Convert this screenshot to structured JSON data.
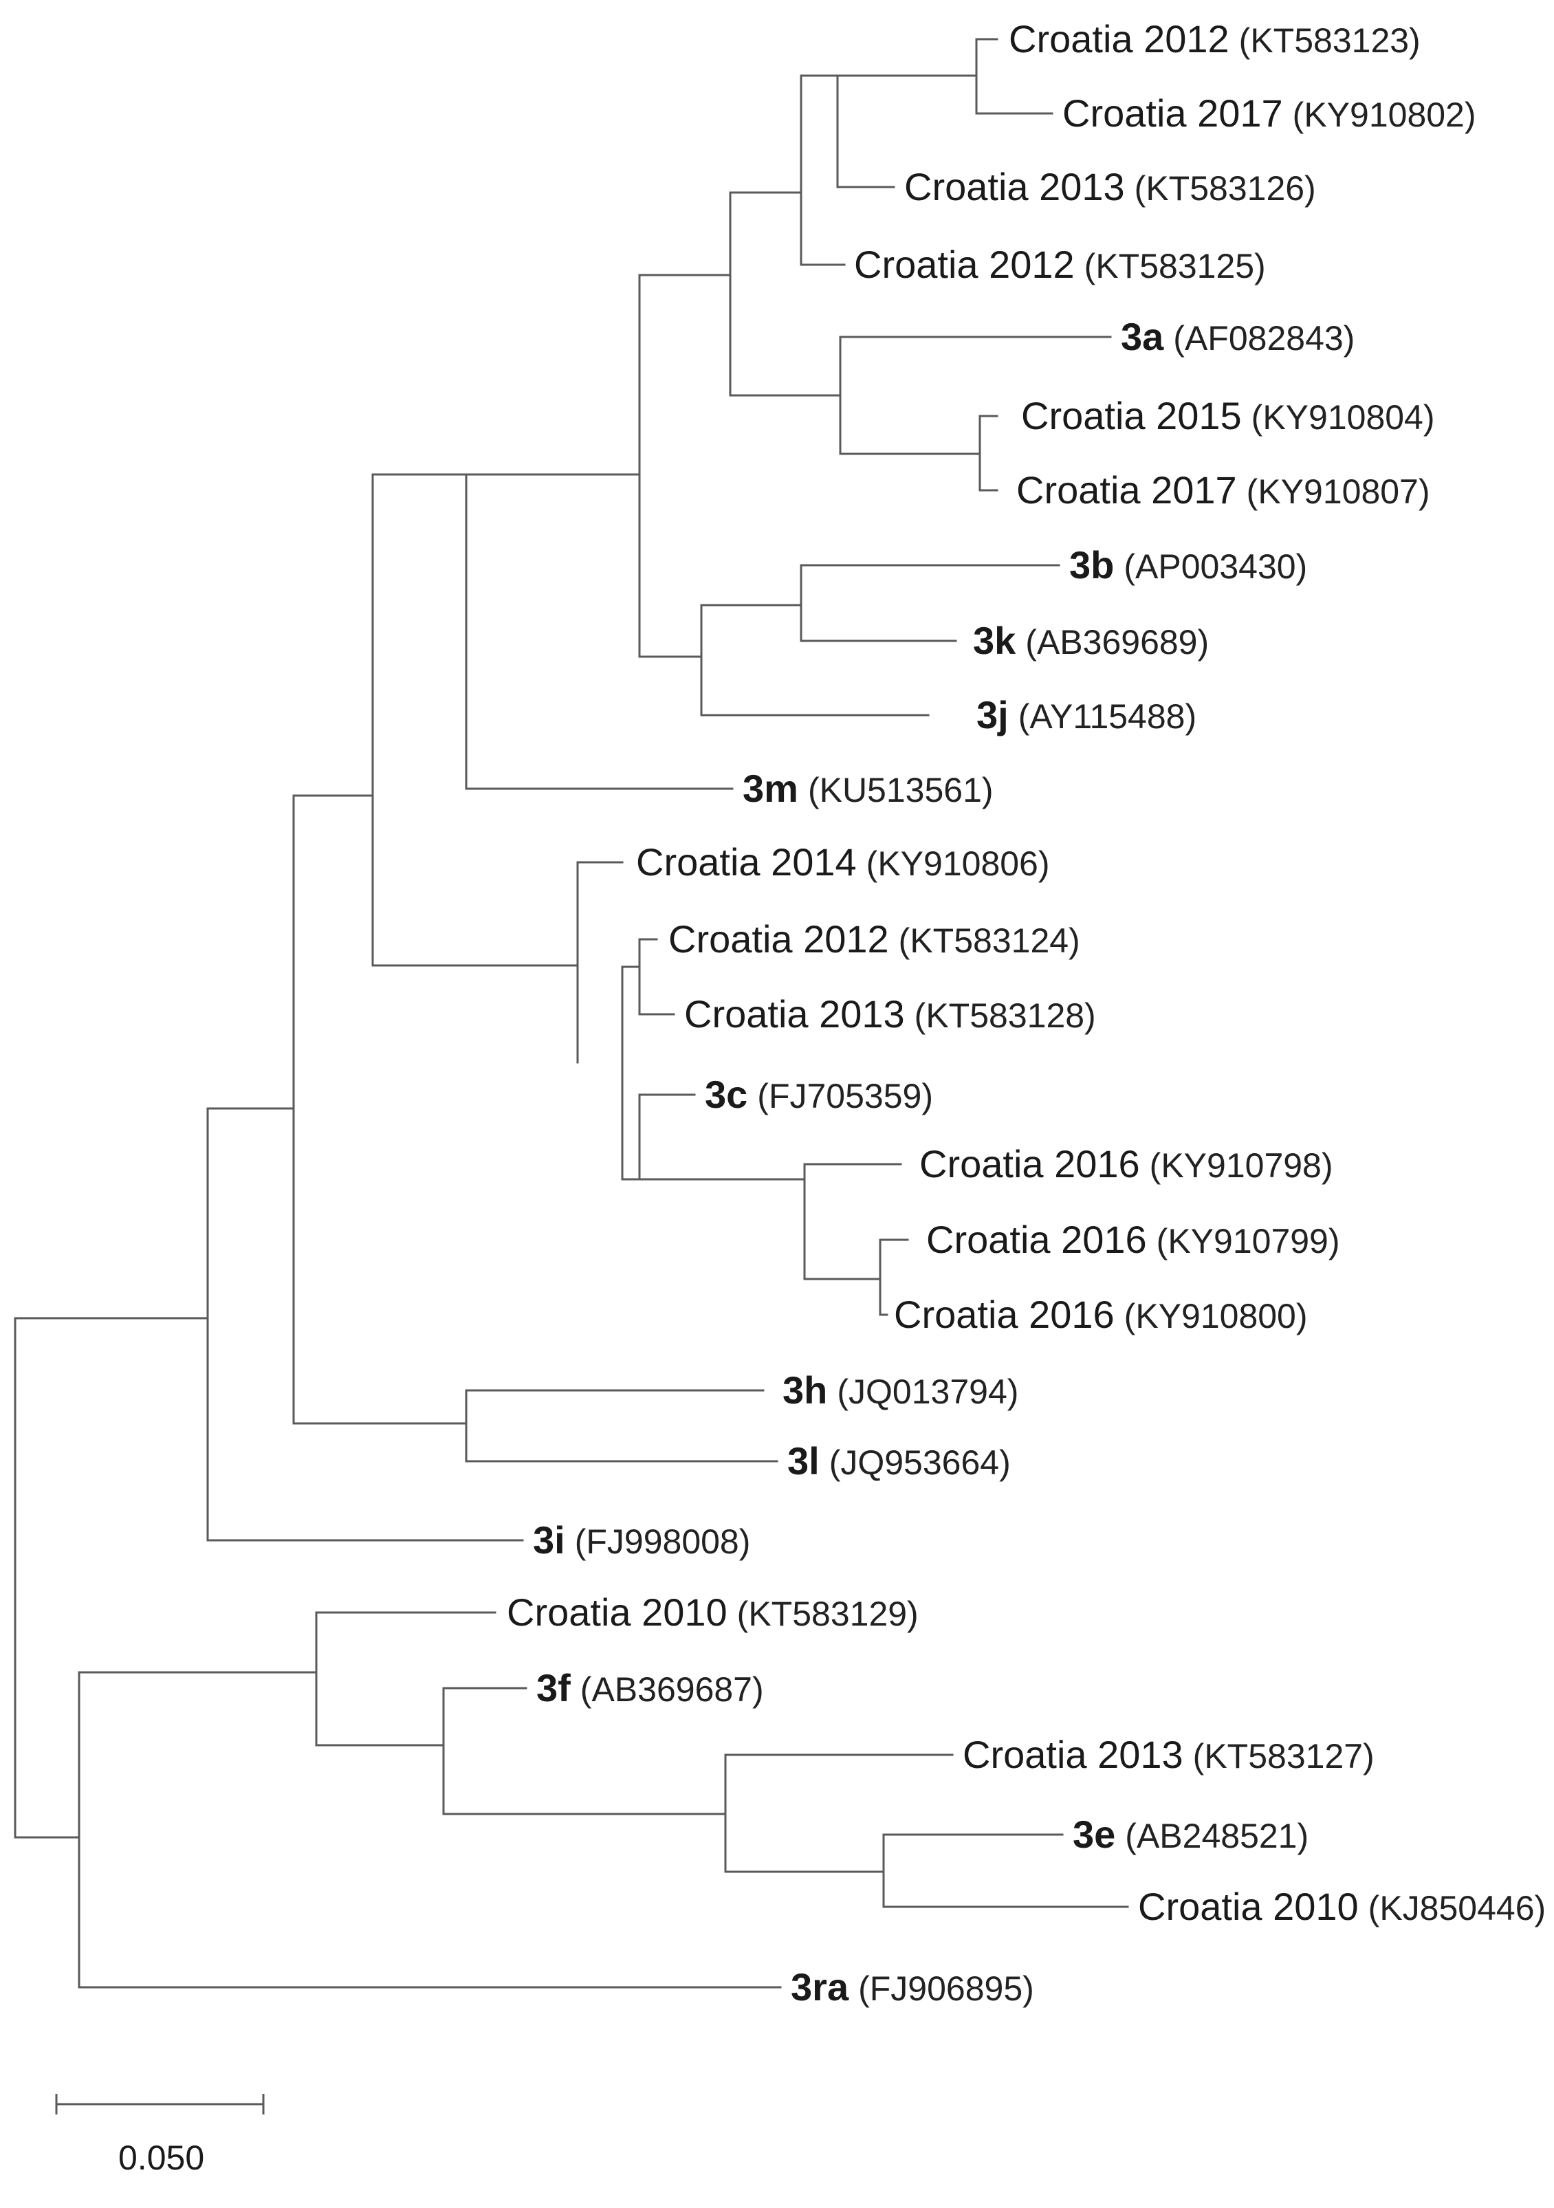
{
  "tree": {
    "leaves": [
      {
        "name": "Croatia 2012",
        "accession": "(KT583123)",
        "bold": false
      },
      {
        "name": "Croatia 2017",
        "accession": "(KY910802)",
        "bold": false
      },
      {
        "name": "Croatia 2013",
        "accession": "(KT583126)",
        "bold": false
      },
      {
        "name": "Croatia 2012",
        "accession": "(KT583125)",
        "bold": false
      },
      {
        "name": "3a",
        "accession": "(AF082843)",
        "bold": true
      },
      {
        "name": "Croatia 2015",
        "accession": "(KY910804)",
        "bold": false
      },
      {
        "name": "Croatia 2017",
        "accession": "(KY910807)",
        "bold": false
      },
      {
        "name": "3b",
        "accession": "(AP003430)",
        "bold": true
      },
      {
        "name": "3k",
        "accession": "(AB369689)",
        "bold": true
      },
      {
        "name": "3j",
        "accession": "(AY115488)",
        "bold": true
      },
      {
        "name": "3m",
        "accession": "(KU513561)",
        "bold": true
      },
      {
        "name": "Croatia 2014",
        "accession": "(KY910806)",
        "bold": false
      },
      {
        "name": "Croatia 2012",
        "accession": "(KT583124)",
        "bold": false
      },
      {
        "name": "Croatia 2013",
        "accession": "(KT583128)",
        "bold": false
      },
      {
        "name": "3c",
        "accession": "(FJ705359)",
        "bold": true
      },
      {
        "name": "Croatia 2016",
        "accession": "(KY910798)",
        "bold": false
      },
      {
        "name": "Croatia 2016",
        "accession": "(KY910799)",
        "bold": false
      },
      {
        "name": "Croatia 2016",
        "accession": "(KY910800)",
        "bold": false
      },
      {
        "name": "3h",
        "accession": "(JQ013794)",
        "bold": true
      },
      {
        "name": "3l",
        "accession": "(JQ953664)",
        "bold": true
      },
      {
        "name": "3i",
        "accession": "(FJ998008)",
        "bold": true
      },
      {
        "name": "Croatia 2010",
        "accession": "(KT583129)",
        "bold": false
      },
      {
        "name": "3f",
        "accession": "(AB369687)",
        "bold": true
      },
      {
        "name": "Croatia 2013",
        "accession": "(KT583127)",
        "bold": false
      },
      {
        "name": "3e",
        "accession": "(AB248521)",
        "bold": true
      },
      {
        "name": "Croatia 2010",
        "accession": "(KJ850446)",
        "bold": false
      },
      {
        "name": "3ra",
        "accession": "(FJ906895)",
        "bold": true
      }
    ]
  },
  "scale_bar": {
    "label": "0.050",
    "value": 0.05
  },
  "colors": {
    "branch": "#5a5a5a",
    "text": "#1a1a1a"
  }
}
